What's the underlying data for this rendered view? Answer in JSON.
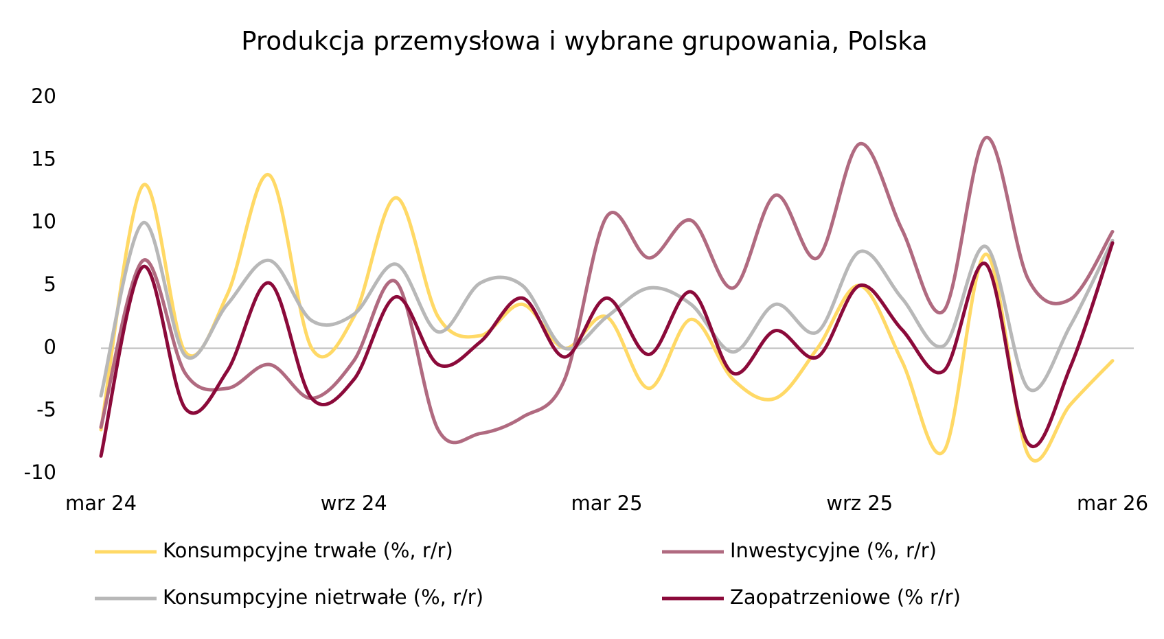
{
  "chart_data": {
    "type": "line",
    "title": "Produkcja przemysłowa i wybrane grupowania, Polska",
    "categories": [
      "mar 24",
      null,
      null,
      null,
      null,
      null,
      "wrz 24",
      null,
      null,
      null,
      null,
      null,
      "mar 25",
      null,
      null,
      null,
      null,
      null,
      "wrz 25",
      null,
      null,
      null,
      null,
      null,
      "mar 26"
    ],
    "ylim": [
      -10,
      20
    ],
    "yticks": [
      -10,
      -5,
      0,
      5,
      10,
      15,
      20
    ],
    "grid": false,
    "legend": "bottom",
    "series": [
      {
        "name": "Konsumpcyjne trwałe (%, r/r)",
        "color": "#ffd966",
        "values": [
          -6.5,
          13,
          -0.3,
          4.3,
          13.8,
          0,
          2.5,
          12,
          2.5,
          1,
          3.5,
          0,
          2.5,
          -3.2,
          2.3,
          -2.5,
          -4,
          0,
          5,
          -1,
          -8.2,
          7.5,
          -8.5,
          -4.5,
          -1
        ]
      },
      {
        "name": "Inwestycyjne (%, r/r)",
        "color": "#b06a80",
        "values": [
          -6.3,
          7,
          -2,
          -3.2,
          -1.3,
          -4,
          -1,
          5.3,
          -6.5,
          -6.8,
          -5.5,
          -2.5,
          10.5,
          7.2,
          10.2,
          4.8,
          12.2,
          7.2,
          16.3,
          9.5,
          3,
          16.8,
          5.5,
          3.9,
          9.3
        ]
      },
      {
        "name": "Konsumpcyjne nietrwałe (%, r/r)",
        "color": "#b8b8b8",
        "values": [
          -3.8,
          10,
          -0.6,
          3.5,
          7,
          2.2,
          2.7,
          6.7,
          1.3,
          5.2,
          5,
          0,
          2.5,
          4.8,
          3.5,
          -0.3,
          3.5,
          1.3,
          7.7,
          4,
          0.2,
          8.1,
          -3.2,
          1.8,
          8.6
        ]
      },
      {
        "name": "Zaopatrzeniowe (% r/r)",
        "color": "#8b0a3a",
        "values": [
          -8.6,
          6.5,
          -4.8,
          -1.8,
          5.2,
          -4,
          -2.5,
          4.1,
          -1.3,
          0.5,
          4,
          -0.7,
          4,
          -0.5,
          4.5,
          -2,
          1.4,
          -0.7,
          5,
          1.5,
          -1.8,
          6.7,
          -7.6,
          -1.5,
          8.4
        ]
      }
    ]
  }
}
